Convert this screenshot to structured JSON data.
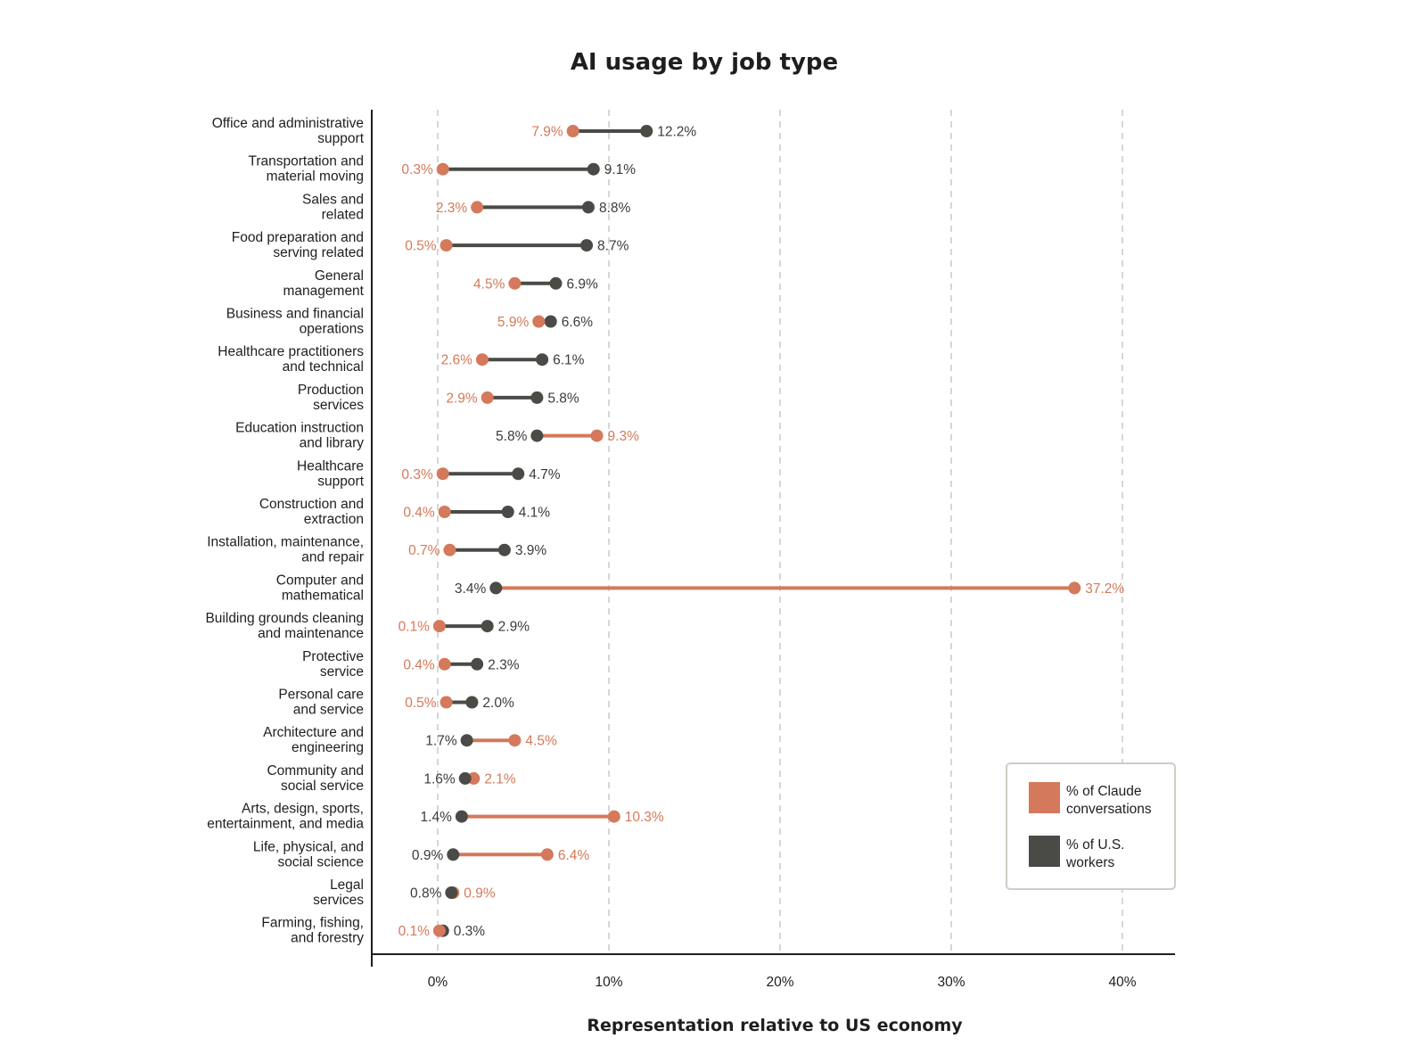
{
  "chart_data": {
    "type": "dumbbell",
    "title": "AI usage by job type",
    "xlabel": "Representation relative to US economy",
    "ylabel": "",
    "xlim": [
      -3.8,
      43
    ],
    "xticks": [
      0,
      10,
      20,
      30,
      40
    ],
    "xtick_labels": [
      "0%",
      "10%",
      "20%",
      "30%",
      "40%"
    ],
    "grid": "vertical dashed",
    "colors": {
      "claude": "#d4795b",
      "workers": "#4a4a47",
      "grid": "#cccccc",
      "axis": "#1f1e1d"
    },
    "legend": {
      "position": "bottom-right",
      "entries": [
        {
          "key": "claude",
          "lines": [
            "% of Claude",
            "conversations"
          ]
        },
        {
          "key": "workers",
          "lines": [
            "% of U.S.",
            "workers"
          ]
        }
      ]
    },
    "categories": [
      {
        "lines": [
          "Office and administrative",
          "support"
        ],
        "claude": 7.9,
        "claude_label": "7.9%",
        "workers": 12.2,
        "workers_label": "12.2%"
      },
      {
        "lines": [
          "Transportation and",
          "material moving"
        ],
        "claude": 0.3,
        "claude_label": "0.3%",
        "workers": 9.1,
        "workers_label": "9.1%"
      },
      {
        "lines": [
          "Sales and",
          "related"
        ],
        "claude": 2.3,
        "claude_label": "2.3%",
        "workers": 8.8,
        "workers_label": "8.8%"
      },
      {
        "lines": [
          "Food preparation and",
          "serving related"
        ],
        "claude": 0.5,
        "claude_label": "0.5%",
        "workers": 8.7,
        "workers_label": "8.7%"
      },
      {
        "lines": [
          "General",
          "management"
        ],
        "claude": 4.5,
        "claude_label": "4.5%",
        "workers": 6.9,
        "workers_label": "6.9%"
      },
      {
        "lines": [
          "Business and financial",
          "operations"
        ],
        "claude": 5.9,
        "claude_label": "5.9%",
        "workers": 6.6,
        "workers_label": "6.6%"
      },
      {
        "lines": [
          "Healthcare practitioners",
          "and technical"
        ],
        "claude": 2.6,
        "claude_label": "2.6%",
        "workers": 6.1,
        "workers_label": "6.1%"
      },
      {
        "lines": [
          "Production",
          "services"
        ],
        "claude": 2.9,
        "claude_label": "2.9%",
        "workers": 5.8,
        "workers_label": "5.8%"
      },
      {
        "lines": [
          "Education instruction",
          "and library"
        ],
        "claude": 9.3,
        "claude_label": "9.3%",
        "workers": 5.8,
        "workers_label": "5.8%"
      },
      {
        "lines": [
          "Healthcare",
          "support"
        ],
        "claude": 0.3,
        "claude_label": "0.3%",
        "workers": 4.7,
        "workers_label": "4.7%"
      },
      {
        "lines": [
          "Construction and",
          "extraction"
        ],
        "claude": 0.4,
        "claude_label": "0.4%",
        "workers": 4.1,
        "workers_label": "4.1%"
      },
      {
        "lines": [
          "Installation, maintenance,",
          "and repair"
        ],
        "claude": 0.7,
        "claude_label": "0.7%",
        "workers": 3.9,
        "workers_label": "3.9%"
      },
      {
        "lines": [
          "Computer and",
          "mathematical"
        ],
        "claude": 37.2,
        "claude_label": "37.2%",
        "workers": 3.4,
        "workers_label": "3.4%"
      },
      {
        "lines": [
          "Building grounds cleaning",
          "and maintenance"
        ],
        "claude": 0.1,
        "claude_label": "0.1%",
        "workers": 2.9,
        "workers_label": "2.9%"
      },
      {
        "lines": [
          "Protective",
          "service"
        ],
        "claude": 0.4,
        "claude_label": "0.4%",
        "workers": 2.3,
        "workers_label": "2.3%"
      },
      {
        "lines": [
          "Personal care",
          "and service"
        ],
        "claude": 0.5,
        "claude_label": "0.5%",
        "workers": 2.0,
        "workers_label": "2.0%"
      },
      {
        "lines": [
          "Architecture and",
          "engineering"
        ],
        "claude": 4.5,
        "claude_label": "4.5%",
        "workers": 1.7,
        "workers_label": "1.7%"
      },
      {
        "lines": [
          "Community and",
          "social service"
        ],
        "claude": 2.1,
        "claude_label": "2.1%",
        "workers": 1.6,
        "workers_label": "1.6%"
      },
      {
        "lines": [
          "Arts, design, sports,",
          "entertainment, and media"
        ],
        "claude": 10.3,
        "claude_label": "10.3%",
        "workers": 1.4,
        "workers_label": "1.4%"
      },
      {
        "lines": [
          "Life, physical, and",
          "social science"
        ],
        "claude": 6.4,
        "claude_label": "6.4%",
        "workers": 0.9,
        "workers_label": "0.9%"
      },
      {
        "lines": [
          "Legal",
          "services"
        ],
        "claude": 0.9,
        "claude_label": "0.9%",
        "workers": 0.8,
        "workers_label": "0.8%"
      },
      {
        "lines": [
          "Farming, fishing,",
          "and forestry"
        ],
        "claude": 0.1,
        "claude_label": "0.1%",
        "workers": 0.3,
        "workers_label": "0.3%"
      }
    ]
  }
}
